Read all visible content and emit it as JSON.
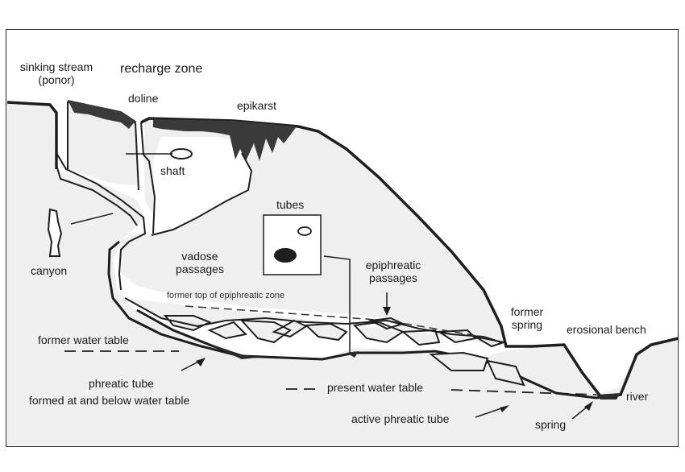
{
  "labels": {
    "sinking_stream": "sinking stream",
    "ponor": "(ponor)",
    "recharge_zone": "recharge zone",
    "doline": "doline",
    "epikarst": "epikarst",
    "shaft": "shaft",
    "canyon": "canyon",
    "tubes": "tubes",
    "vadose": "vadose",
    "passages_vadose": "passages",
    "epiphreatic": "epiphreatic",
    "passages_epiphreatic": "passages",
    "former_top": "former top of epiphreatic zone",
    "former": "former",
    "spring_former": "spring",
    "erosional_bench": "erosional bench",
    "former_water_table": "former water table",
    "phreatic_tube": "phreatic tube",
    "formed_at": "formed at and below water table",
    "present_water_table": "present water table",
    "river": "river",
    "active_phreatic_tube": "active phreatic tube",
    "spring": "spring"
  },
  "colors": {
    "rock_fill": "#efefef",
    "outline": "#1e1e1e",
    "dark_fill": "#2a2a2a"
  }
}
